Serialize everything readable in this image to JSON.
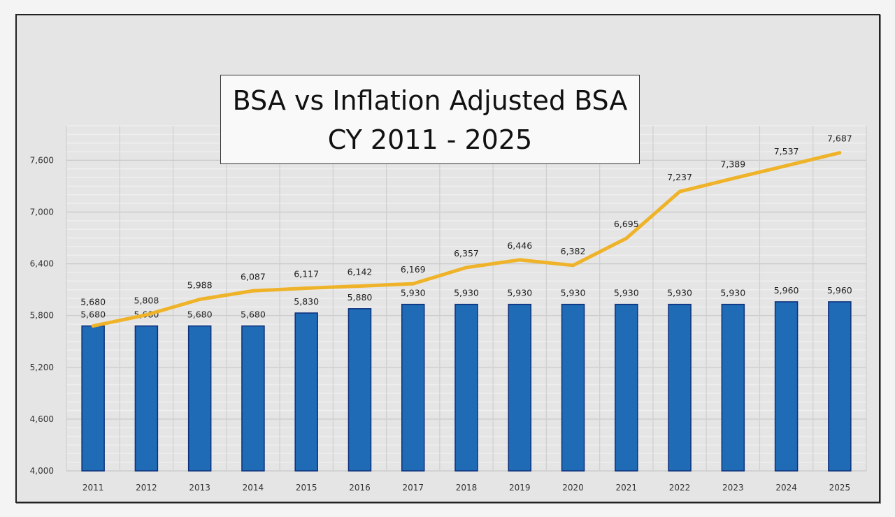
{
  "chart_data": {
    "type": "bar+line",
    "title": [
      "BSA vs Inflation Adjusted BSA",
      "CY 2011 - 2025"
    ],
    "categories": [
      "2011",
      "2012",
      "2013",
      "2014",
      "2015",
      "2016",
      "2017",
      "2018",
      "2019",
      "2020",
      "2021",
      "2022",
      "2023",
      "2024",
      "2025"
    ],
    "series": [
      {
        "type": "bar",
        "values": [
          5680,
          5680,
          5680,
          5680,
          5830,
          5880,
          5930,
          5930,
          5930,
          5930,
          5930,
          5930,
          5930,
          5960,
          5960
        ],
        "labels": [
          "5,680",
          "5,680",
          "5,680",
          "5,680",
          "5,830",
          "5,880",
          "5,930",
          "5,930",
          "5,930",
          "5,930",
          "5,930",
          "5,930",
          "5,930",
          "5,960",
          "5,960"
        ],
        "color": "#1f6bb6"
      },
      {
        "type": "line",
        "values": [
          5680,
          5808,
          5988,
          6087,
          6117,
          6142,
          6169,
          6357,
          6446,
          6382,
          6695,
          7237,
          7389,
          7537,
          7687
        ],
        "labels": [
          "5,680",
          "5,808",
          "5,988",
          "6,087",
          "6,117",
          "6,142",
          "6,169",
          "6,357",
          "6,446",
          "6,382",
          "6,695",
          "7,237",
          "7,389",
          "7,537",
          "7,687"
        ],
        "color": "#efb32a"
      }
    ],
    "ylim": [
      4000,
      8000
    ],
    "yticks": [
      4000,
      4600,
      5200,
      5800,
      6400,
      7000,
      7600
    ],
    "ytick_labels": [
      "4,000",
      "4,600",
      "5,200",
      "5,800",
      "6,400",
      "7,000",
      "7,600"
    ],
    "minor_grid_step": 100,
    "grid": true,
    "legend": "none",
    "xlabel": "",
    "ylabel": ""
  }
}
